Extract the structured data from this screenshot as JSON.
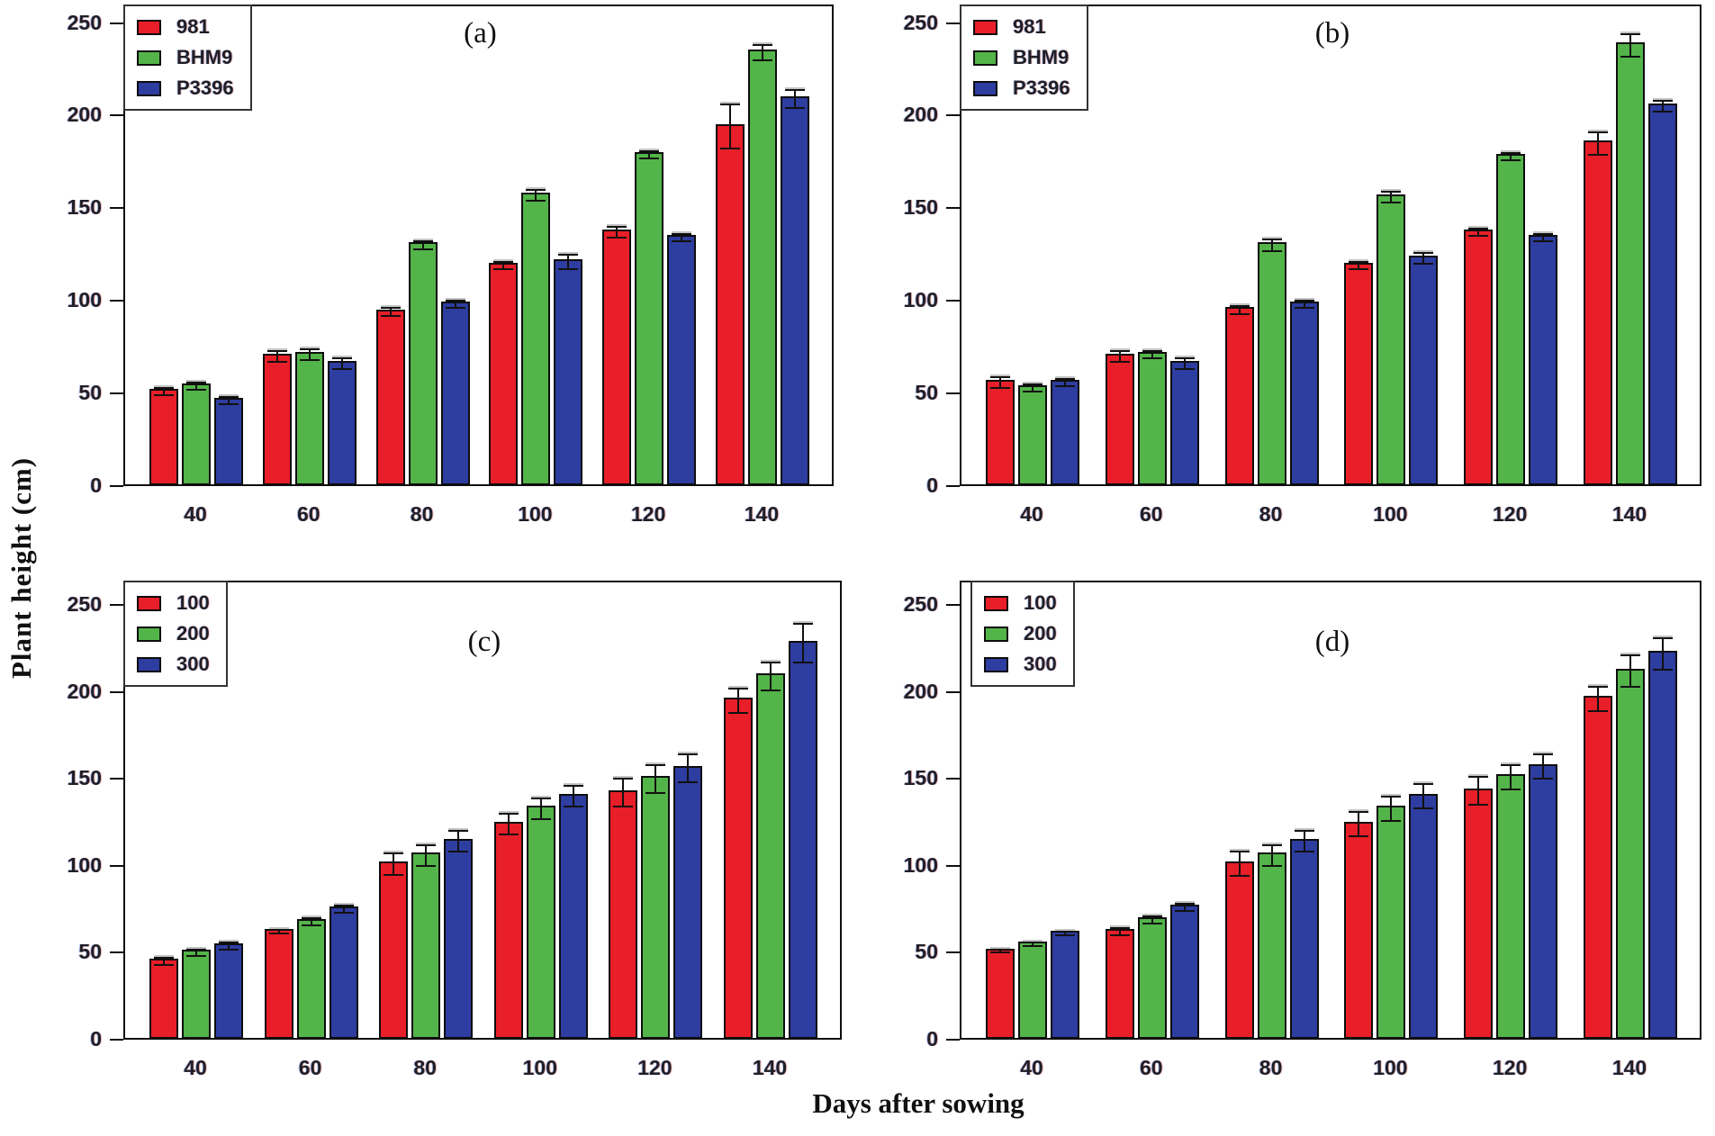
{
  "figure": {
    "y_label": "Plant height (cm)",
    "x_label": "Days after sowing",
    "background": "#ffffff"
  },
  "colors": {
    "red": "#e81e28",
    "green": "#53b449",
    "blue": "#2e3da0",
    "bar_edge": "#0d0d0d",
    "error_bar": "#111111",
    "frame": "#0e0e0e",
    "tick_text": "#1f1f28"
  },
  "chart_data": [
    {
      "type": "bar",
      "panel_label": "(a)",
      "x_tick_labels": [
        "40",
        "60",
        "80",
        "100",
        "120",
        "140"
      ],
      "y_ticks": [
        0,
        50,
        100,
        150,
        200,
        250
      ],
      "ylim": [
        0,
        260
      ],
      "grid": false,
      "legend_position": "top-left",
      "series": [
        {
          "name": "981",
          "color": "red",
          "values": [
            52,
            71,
            95,
            120,
            138,
            195
          ],
          "errors": [
            2,
            3,
            2,
            2,
            3,
            12
          ]
        },
        {
          "name": "BHM9",
          "color": "green",
          "values": [
            55,
            72,
            131,
            158,
            180,
            235
          ],
          "errors": [
            2,
            3,
            2,
            3,
            2,
            4
          ]
        },
        {
          "name": "P3396",
          "color": "blue",
          "values": [
            47,
            67,
            99,
            122,
            135,
            210
          ],
          "errors": [
            2,
            3,
            2,
            4,
            2,
            5
          ]
        }
      ]
    },
    {
      "type": "bar",
      "panel_label": "(b)",
      "x_tick_labels": [
        "40",
        "60",
        "80",
        "100",
        "120",
        "140"
      ],
      "y_ticks": [
        0,
        50,
        100,
        150,
        200,
        250
      ],
      "ylim": [
        0,
        260
      ],
      "grid": false,
      "legend_position": "top-left",
      "series": [
        {
          "name": "981",
          "color": "red",
          "values": [
            57,
            71,
            96,
            120,
            138,
            186
          ],
          "errors": [
            3,
            3,
            2,
            2,
            2,
            6
          ]
        },
        {
          "name": "BHM9",
          "color": "green",
          "values": [
            54,
            72,
            131,
            157,
            179,
            239
          ],
          "errors": [
            2,
            2,
            3,
            3,
            2,
            6
          ]
        },
        {
          "name": "P3396",
          "color": "blue",
          "values": [
            57,
            67,
            99,
            124,
            135,
            206
          ],
          "errors": [
            2,
            3,
            2,
            3,
            2,
            3
          ]
        }
      ]
    },
    {
      "type": "bar",
      "panel_label": "(c)",
      "x_tick_labels": [
        "40",
        "60",
        "80",
        "100",
        "120",
        "140"
      ],
      "y_ticks": [
        0,
        50,
        100,
        150,
        200,
        250
      ],
      "ylim": [
        0,
        264
      ],
      "grid": false,
      "legend_position": "top-left",
      "series": [
        {
          "name": "100",
          "color": "red",
          "values": [
            46,
            63,
            102,
            125,
            143,
            196
          ],
          "errors": [
            2,
            1,
            6,
            6,
            8,
            7
          ]
        },
        {
          "name": "200",
          "color": "green",
          "values": [
            51,
            69,
            107,
            134,
            151,
            210
          ],
          "errors": [
            2,
            2,
            6,
            6,
            8,
            8
          ]
        },
        {
          "name": "300",
          "color": "blue",
          "values": [
            55,
            76,
            115,
            141,
            157,
            229
          ],
          "errors": [
            2,
            2,
            6,
            6,
            8,
            11
          ]
        }
      ]
    },
    {
      "type": "bar",
      "panel_label": "(d)",
      "x_tick_labels": [
        "40",
        "60",
        "80",
        "100",
        "120",
        "140"
      ],
      "y_ticks": [
        0,
        50,
        100,
        150,
        200,
        250
      ],
      "ylim": [
        0,
        264
      ],
      "grid": false,
      "legend_position": "top-left",
      "series": [
        {
          "name": "100",
          "color": "red",
          "values": [
            52,
            63,
            102,
            125,
            144,
            197
          ],
          "errors": [
            1,
            2,
            7,
            7,
            8,
            7
          ]
        },
        {
          "name": "200",
          "color": "green",
          "values": [
            56,
            70,
            107,
            134,
            152,
            213
          ],
          "errors": [
            1,
            2,
            6,
            7,
            7,
            9
          ]
        },
        {
          "name": "300",
          "color": "blue",
          "values": [
            62,
            77,
            115,
            141,
            158,
            223
          ],
          "errors": [
            1,
            2,
            6,
            7,
            7,
            9
          ]
        }
      ]
    }
  ]
}
